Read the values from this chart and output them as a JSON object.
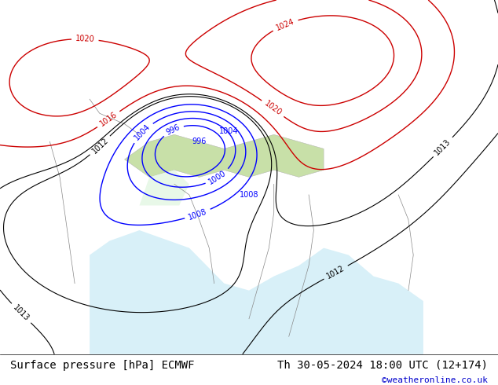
{
  "title_left": "Surface pressure [hPa] ECMWF",
  "title_right": "Th 30-05-2024 18:00 UTC (12+174)",
  "credit": "©weatheronline.co.uk",
  "bg_color": "#c8f0a0",
  "land_color": "#b8e890",
  "sea_color": "#d0f0f8",
  "fig_width": 6.34,
  "fig_height": 4.9,
  "dpi": 100,
  "bottom_bar_color": "#ffffff",
  "bottom_bar_height": 0.08,
  "title_fontsize": 10,
  "credit_color": "#0000cc",
  "credit_fontsize": 8,
  "contour_blue_color": "#0000ff",
  "contour_red_color": "#cc0000",
  "contour_black_color": "#000000",
  "label_fontsize": 7
}
